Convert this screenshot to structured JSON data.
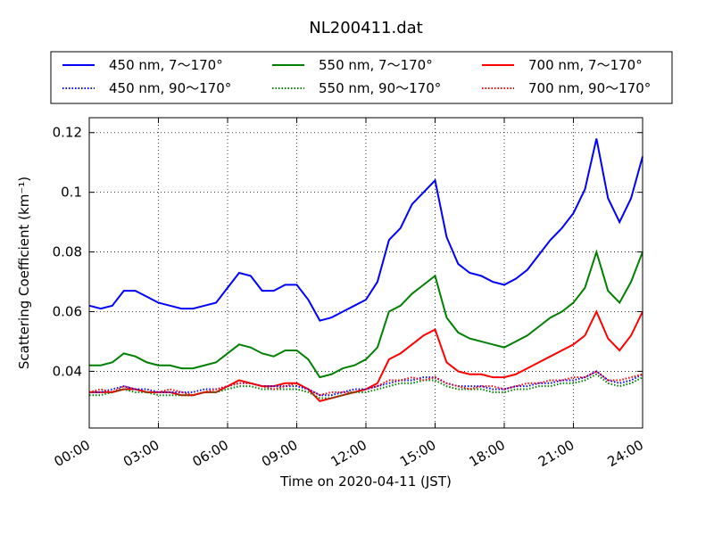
{
  "chart_data": {
    "type": "line",
    "title": "NL200411.dat",
    "x_label": "Time on 2020-04-11 (JST)",
    "y_label": "Scattering Coefficient (km⁻¹)",
    "x": [
      0,
      0.5,
      1,
      1.5,
      2,
      2.5,
      3,
      3.5,
      4,
      4.5,
      5,
      5.5,
      6,
      6.5,
      7,
      7.5,
      8,
      8.5,
      9,
      9.5,
      10,
      10.5,
      11,
      11.5,
      12,
      12.5,
      13,
      13.5,
      14,
      14.5,
      15,
      15.5,
      16,
      16.5,
      17,
      17.5,
      18,
      18.5,
      19,
      19.5,
      20,
      20.5,
      21,
      21.5,
      22,
      22.5,
      23,
      23.5,
      24
    ],
    "xlim": [
      0,
      24
    ],
    "xticks": [
      {
        "value": 0,
        "label": "00:00"
      },
      {
        "value": 3,
        "label": "03:00"
      },
      {
        "value": 6,
        "label": "06:00"
      },
      {
        "value": 9,
        "label": "09:00"
      },
      {
        "value": 12,
        "label": "12:00"
      },
      {
        "value": 15,
        "label": "15:00"
      },
      {
        "value": 18,
        "label": "18:00"
      },
      {
        "value": 21,
        "label": "21:00"
      },
      {
        "value": 24,
        "label": "24:00"
      }
    ],
    "ylim": [
      0.021,
      0.125
    ],
    "yticks": [
      0.04,
      0.06,
      0.08,
      0.1,
      {
        "value": 0.12,
        "label": "0.12"
      }
    ],
    "grid": true,
    "legend": "top",
    "series": [
      {
        "name": "450 nm, 7～170°",
        "color": "#0000ff",
        "linestyle": "solid",
        "values": [
          0.062,
          0.061,
          0.062,
          0.067,
          0.067,
          0.065,
          0.063,
          0.062,
          0.061,
          0.061,
          0.062,
          0.063,
          0.068,
          0.073,
          0.072,
          0.067,
          0.067,
          0.069,
          0.069,
          0.064,
          0.057,
          0.058,
          0.06,
          0.062,
          0.064,
          0.07,
          0.084,
          0.088,
          0.096,
          0.1,
          0.104,
          0.085,
          0.076,
          0.073,
          0.072,
          0.07,
          0.069,
          0.071,
          0.074,
          0.079,
          0.084,
          0.088,
          0.093,
          0.101,
          0.118,
          0.098,
          0.09,
          0.098,
          0.112
        ]
      },
      {
        "name": "550 nm, 7～170°",
        "color": "#008000",
        "linestyle": "solid",
        "values": [
          0.042,
          0.042,
          0.043,
          0.046,
          0.045,
          0.043,
          0.042,
          0.042,
          0.041,
          0.041,
          0.042,
          0.043,
          0.046,
          0.049,
          0.048,
          0.046,
          0.045,
          0.047,
          0.047,
          0.044,
          0.038,
          0.039,
          0.041,
          0.042,
          0.044,
          0.048,
          0.06,
          0.062,
          0.066,
          0.069,
          0.072,
          0.058,
          0.053,
          0.051,
          0.05,
          0.049,
          0.048,
          0.05,
          0.052,
          0.055,
          0.058,
          0.06,
          0.063,
          0.068,
          0.08,
          0.067,
          0.063,
          0.07,
          0.08
        ]
      },
      {
        "name": "700 nm, 7～170°",
        "color": "#ff0000",
        "linestyle": "solid",
        "values": [
          0.033,
          0.033,
          0.033,
          0.034,
          0.034,
          0.033,
          0.033,
          0.033,
          0.032,
          0.032,
          0.033,
          0.033,
          0.035,
          0.037,
          0.036,
          0.035,
          0.035,
          0.036,
          0.036,
          0.034,
          0.03,
          0.031,
          0.032,
          0.033,
          0.034,
          0.036,
          0.044,
          0.046,
          0.049,
          0.052,
          0.054,
          0.043,
          0.04,
          0.039,
          0.039,
          0.038,
          0.038,
          0.039,
          0.041,
          0.043,
          0.045,
          0.047,
          0.049,
          0.052,
          0.06,
          0.051,
          0.047,
          0.052,
          0.06
        ]
      },
      {
        "name": "450 nm, 90～170°",
        "color": "#0000ff",
        "linestyle": "dotted",
        "values": [
          0.033,
          0.033,
          0.034,
          0.035,
          0.034,
          0.034,
          0.033,
          0.033,
          0.033,
          0.033,
          0.034,
          0.034,
          0.035,
          0.036,
          0.036,
          0.035,
          0.035,
          0.035,
          0.035,
          0.034,
          0.032,
          0.032,
          0.033,
          0.034,
          0.034,
          0.035,
          0.036,
          0.037,
          0.037,
          0.038,
          0.038,
          0.036,
          0.035,
          0.035,
          0.035,
          0.034,
          0.034,
          0.035,
          0.035,
          0.036,
          0.036,
          0.037,
          0.037,
          0.038,
          0.04,
          0.037,
          0.036,
          0.037,
          0.039
        ]
      },
      {
        "name": "550 nm, 90～170°",
        "color": "#008000",
        "linestyle": "dotted",
        "values": [
          0.032,
          0.032,
          0.033,
          0.034,
          0.033,
          0.033,
          0.032,
          0.032,
          0.032,
          0.032,
          0.033,
          0.033,
          0.034,
          0.035,
          0.035,
          0.034,
          0.034,
          0.034,
          0.034,
          0.033,
          0.031,
          0.031,
          0.032,
          0.033,
          0.033,
          0.034,
          0.035,
          0.036,
          0.036,
          0.037,
          0.037,
          0.035,
          0.034,
          0.034,
          0.034,
          0.033,
          0.033,
          0.034,
          0.034,
          0.035,
          0.035,
          0.036,
          0.036,
          0.037,
          0.039,
          0.036,
          0.035,
          0.036,
          0.038
        ]
      },
      {
        "name": "700 nm, 90～170°",
        "color": "#ff0000",
        "linestyle": "dotted",
        "values": [
          0.033,
          0.034,
          0.033,
          0.035,
          0.034,
          0.033,
          0.033,
          0.034,
          0.033,
          0.032,
          0.033,
          0.034,
          0.035,
          0.036,
          0.036,
          0.035,
          0.034,
          0.035,
          0.036,
          0.034,
          0.032,
          0.033,
          0.033,
          0.033,
          0.034,
          0.035,
          0.037,
          0.037,
          0.038,
          0.037,
          0.038,
          0.036,
          0.035,
          0.034,
          0.035,
          0.035,
          0.034,
          0.035,
          0.036,
          0.036,
          0.037,
          0.037,
          0.038,
          0.038,
          0.04,
          0.037,
          0.037,
          0.038,
          0.039
        ]
      }
    ]
  }
}
